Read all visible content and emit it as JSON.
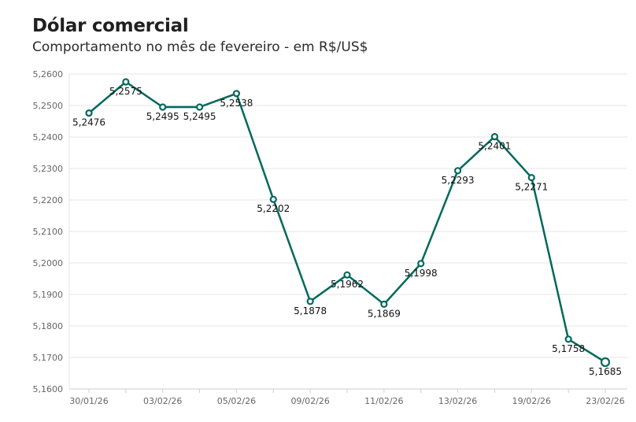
{
  "chart_data": {
    "type": "line",
    "title": "Dólar comercial",
    "subtitle": "Comportamento no mês de fevereiro - em R$/US$",
    "series_color": "#00695c",
    "grid": true,
    "ylim": [
      5.16,
      5.26
    ],
    "y_ticks": [
      "5,1600",
      "5,1700",
      "5,1800",
      "5,1900",
      "5,2000",
      "5,2100",
      "5,2200",
      "5,2300",
      "5,2400",
      "5,2500",
      "5,2600"
    ],
    "x_ticks": [
      {
        "label": "30/01/26",
        "index": 0
      },
      {
        "label": "03/02/26",
        "index": 2
      },
      {
        "label": "05/02/26",
        "index": 4
      },
      {
        "label": "09/02/26",
        "index": 6
      },
      {
        "label": "11/02/26",
        "index": 8
      },
      {
        "label": "13/02/26",
        "index": 10
      },
      {
        "label": "19/02/26",
        "index": 12
      },
      {
        "label": "23/02/26",
        "index": 14
      }
    ],
    "points": [
      {
        "y": 5.2476,
        "label": "5,2476"
      },
      {
        "y": 5.2575,
        "label": "5,2575"
      },
      {
        "y": 5.2495,
        "label": "5,2495"
      },
      {
        "y": 5.2495,
        "label": "5,2495"
      },
      {
        "y": 5.2538,
        "label": "5,2538"
      },
      {
        "y": 5.2202,
        "label": "5,2202"
      },
      {
        "y": 5.1878,
        "label": "5,1878"
      },
      {
        "y": 5.1962,
        "label": "5,1962"
      },
      {
        "y": 5.1869,
        "label": "5,1869"
      },
      {
        "y": 5.1998,
        "label": "5,1998"
      },
      {
        "y": 5.2293,
        "label": "5,2293"
      },
      {
        "y": 5.2401,
        "label": "5,2401"
      },
      {
        "y": 5.2271,
        "label": "5,2271"
      },
      {
        "y": 5.1758,
        "label": "5,1758"
      },
      {
        "y": 5.1685,
        "label": "5,1685"
      }
    ]
  }
}
